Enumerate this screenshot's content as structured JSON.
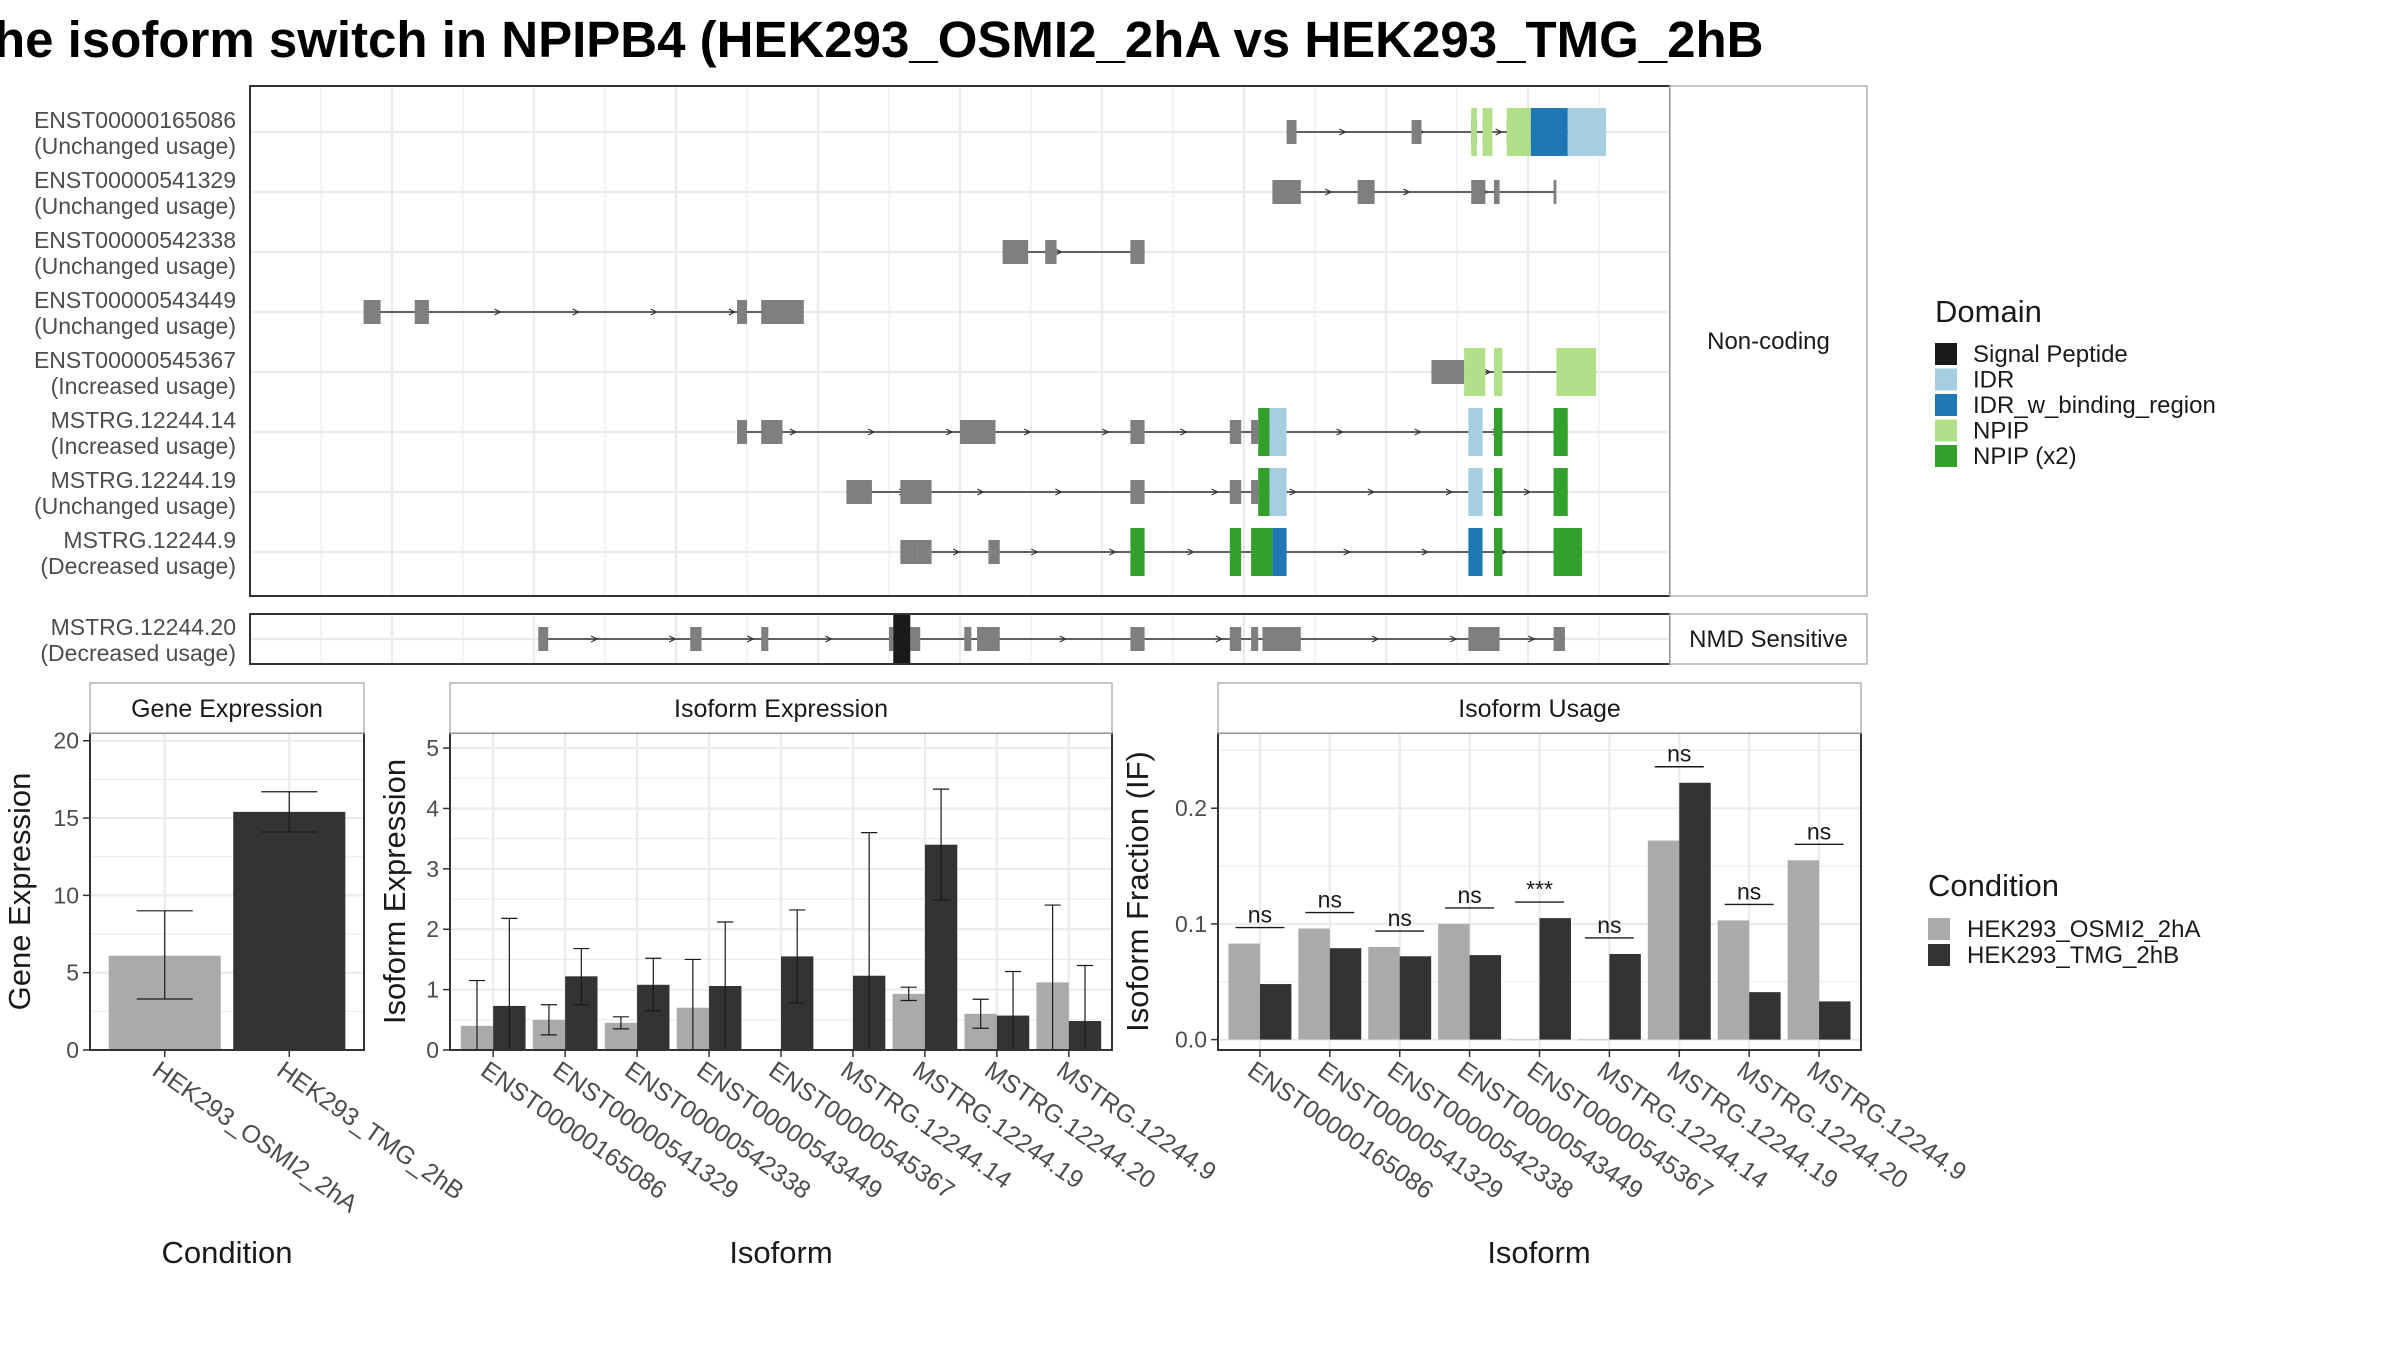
{
  "title": "he isoform switch in NPIPB4 (HEK293_OSMI2_2hA vs HEK293_TMG_2hB",
  "colors": {
    "exon": "#7f7f7f",
    "cond1": "#aaaaaa",
    "cond2": "#333333",
    "grid": "#ebebeb",
    "panel_border": "#333333",
    "strip_border": "#b3b3b3"
  },
  "domain_legend": {
    "title": "Domain",
    "items": [
      {
        "label": "Signal Peptide",
        "color": "#1a1a1a"
      },
      {
        "label": "IDR",
        "color": "#a6cee3"
      },
      {
        "label": "IDR_w_binding_region",
        "color": "#1f78b4"
      },
      {
        "label": "NPIP",
        "color": "#b2df8a"
      },
      {
        "label": "NPIP (x2)",
        "color": "#33a02c"
      }
    ]
  },
  "condition_legend": {
    "title": "Condition",
    "items": [
      {
        "label": "HEK293_OSMI2_2hA",
        "color": "#aaaaaa"
      },
      {
        "label": "HEK293_TMG_2hB",
        "color": "#333333"
      }
    ]
  },
  "chart_data": [
    {
      "type": "isoform_structure",
      "panel": "Non-coding",
      "x_range": [
        0,
        1000
      ],
      "tracks": [
        {
          "name": "ENST00000165086",
          "status": "(Unchanged usage)",
          "exons": [
            [
              730,
              737
            ],
            [
              818,
              825
            ],
            [
              860,
              864
            ],
            [
              868,
              875
            ],
            [
              885,
              890
            ],
            [
              902,
              915
            ]
          ],
          "domains": [
            {
              "start": 860,
              "end": 864,
              "domain": "NPIP"
            },
            {
              "start": 868,
              "end": 875,
              "domain": "NPIP"
            },
            {
              "start": 885,
              "end": 902,
              "domain": "NPIP"
            },
            {
              "start": 902,
              "end": 928,
              "domain": "IDR_w_binding_region"
            },
            {
              "start": 928,
              "end": 955,
              "domain": "IDR"
            }
          ]
        },
        {
          "name": "ENST00000541329",
          "status": "(Unchanged usage)",
          "exons": [
            [
              720,
              740
            ],
            [
              780,
              792
            ],
            [
              860,
              870
            ],
            [
              876,
              880
            ],
            [
              918,
              920
            ]
          ],
          "domains": []
        },
        {
          "name": "ENST00000542338",
          "status": "(Unchanged usage)",
          "exons": [
            [
              530,
              548
            ],
            [
              560,
              568
            ],
            [
              620,
              630
            ]
          ],
          "domains": []
        },
        {
          "name": "ENST00000543449",
          "status": "(Unchanged usage)",
          "exons": [
            [
              80,
              92
            ],
            [
              116,
              126
            ],
            [
              343,
              350
            ],
            [
              360,
              390
            ]
          ],
          "domains": []
        },
        {
          "name": "ENST00000545367",
          "status": "(Increased usage)",
          "exons": [
            [
              832,
              855
            ]
          ],
          "domains": [
            {
              "start": 855,
              "end": 870,
              "domain": "NPIP"
            },
            {
              "start": 876,
              "end": 882,
              "domain": "NPIP"
            },
            {
              "start": 920,
              "end": 948,
              "domain": "NPIP"
            }
          ]
        },
        {
          "name": "MSTRG.12244.14",
          "status": "(Increased usage)",
          "exons": [
            [
              343,
              350
            ],
            [
              360,
              375
            ],
            [
              500,
              525
            ],
            [
              620,
              630
            ],
            [
              690,
              698
            ],
            [
              705,
              710
            ]
          ],
          "domains": [
            {
              "start": 710,
              "end": 718,
              "domain": "NPIP (x2)"
            },
            {
              "start": 718,
              "end": 730,
              "domain": "IDR"
            },
            {
              "start": 858,
              "end": 868,
              "domain": "IDR"
            },
            {
              "start": 876,
              "end": 882,
              "domain": "NPIP (x2)"
            },
            {
              "start": 918,
              "end": 928,
              "domain": "NPIP (x2)"
            }
          ]
        },
        {
          "name": "MSTRG.12244.19",
          "status": "(Unchanged usage)",
          "exons": [
            [
              420,
              438
            ],
            [
              458,
              480
            ],
            [
              620,
              630
            ],
            [
              690,
              698
            ],
            [
              705,
              710
            ]
          ],
          "domains": [
            {
              "start": 710,
              "end": 718,
              "domain": "NPIP (x2)"
            },
            {
              "start": 718,
              "end": 730,
              "domain": "IDR"
            },
            {
              "start": 858,
              "end": 868,
              "domain": "IDR"
            },
            {
              "start": 876,
              "end": 882,
              "domain": "NPIP (x2)"
            },
            {
              "start": 918,
              "end": 928,
              "domain": "NPIP (x2)"
            }
          ]
        },
        {
          "name": "MSTRG.12244.9",
          "status": "(Decreased usage)",
          "exons": [
            [
              458,
              470
            ],
            [
              470,
              480
            ],
            [
              520,
              528
            ]
          ],
          "domains": [
            {
              "start": 620,
              "end": 630,
              "domain": "NPIP (x2)"
            },
            {
              "start": 690,
              "end": 698,
              "domain": "NPIP (x2)"
            },
            {
              "start": 705,
              "end": 720,
              "domain": "NPIP (x2)"
            },
            {
              "start": 720,
              "end": 730,
              "domain": "IDR_w_binding_region"
            },
            {
              "start": 858,
              "end": 868,
              "domain": "IDR_w_binding_region"
            },
            {
              "start": 876,
              "end": 882,
              "domain": "NPIP (x2)"
            },
            {
              "start": 918,
              "end": 938,
              "domain": "NPIP (x2)"
            }
          ]
        }
      ]
    },
    {
      "type": "isoform_structure",
      "panel": "NMD Sensitive",
      "x_range": [
        0,
        1000
      ],
      "tracks": [
        {
          "name": "MSTRG.12244.20",
          "status": "(Decreased usage)",
          "exons": [
            [
              203,
              210
            ],
            [
              310,
              318
            ],
            [
              360,
              365
            ],
            [
              450,
              453
            ],
            [
              465,
              472
            ],
            [
              503,
              508
            ],
            [
              512,
              528
            ],
            [
              620,
              630
            ],
            [
              690,
              698
            ],
            [
              705,
              710
            ],
            [
              713,
              740
            ],
            [
              858,
              880
            ],
            [
              918,
              926
            ]
          ],
          "domains": [
            {
              "start": 453,
              "end": 465,
              "domain": "Signal Peptide"
            }
          ]
        }
      ]
    },
    {
      "type": "bar",
      "title": "Gene Expression",
      "xlabel": "Condition",
      "ylabel": "Gene Expression",
      "ylim": [
        0,
        20.5
      ],
      "yticks": [
        0,
        5,
        10,
        15,
        20
      ],
      "categories": [
        "HEK293_OSMI2_2hA",
        "HEK293_TMG_2hB"
      ],
      "values": [
        6.1,
        15.4
      ],
      "errors": [
        [
          3.3,
          9.0
        ],
        [
          14.1,
          16.7
        ]
      ]
    },
    {
      "type": "bar",
      "title": "Isoform Expression",
      "xlabel": "Isoform",
      "ylabel": "Isoform Expression",
      "ylim": [
        0,
        5.25
      ],
      "yticks": [
        0,
        1,
        2,
        3,
        4,
        5
      ],
      "categories": [
        "ENST00000165086",
        "ENST00000541329",
        "ENST00000542338",
        "ENST00000543449",
        "ENST00000545367",
        "MSTRG.12244.14",
        "MSTRG.12244.19",
        "MSTRG.12244.20",
        "MSTRG.12244.9"
      ],
      "series": [
        {
          "name": "HEK293_OSMI2_2hA",
          "values": [
            0.4,
            0.5,
            0.45,
            0.7,
            0.0,
            0.0,
            0.93,
            0.6,
            1.12
          ],
          "errors": [
            [
              0.0,
              1.15
            ],
            [
              0.25,
              0.75
            ],
            [
              0.35,
              0.55
            ],
            [
              0.0,
              1.5
            ],
            [
              0.0,
              0.0
            ],
            [
              0.0,
              0.0
            ],
            [
              0.82,
              1.04
            ],
            [
              0.36,
              0.84
            ],
            [
              0.0,
              2.4
            ]
          ]
        },
        {
          "name": "HEK293_TMG_2hB",
          "values": [
            0.73,
            1.22,
            1.08,
            1.06,
            1.55,
            1.23,
            3.4,
            0.57,
            0.48
          ],
          "errors": [
            [
              0.0,
              2.18
            ],
            [
              0.75,
              1.68
            ],
            [
              0.65,
              1.52
            ],
            [
              0.0,
              2.12
            ],
            [
              0.78,
              2.32
            ],
            [
              0.0,
              3.6
            ],
            [
              2.48,
              4.32
            ],
            [
              0.0,
              1.3
            ],
            [
              0.0,
              1.4
            ]
          ]
        }
      ]
    },
    {
      "type": "bar",
      "title": "Isoform Usage",
      "xlabel": "Isoform",
      "ylabel": "Isoform Fraction (IF)",
      "ylim": [
        -0.009,
        0.265
      ],
      "yticks": [
        0.0,
        0.1,
        0.2
      ],
      "ytick_labels": [
        "0.0",
        "0.1",
        "0.2"
      ],
      "categories": [
        "ENST00000165086",
        "ENST00000541329",
        "ENST00000542338",
        "ENST00000543449",
        "ENST00000545367",
        "MSTRG.12244.14",
        "MSTRG.12244.19",
        "MSTRG.12244.20",
        "MSTRG.12244.9"
      ],
      "series": [
        {
          "name": "HEK293_OSMI2_2hA",
          "values": [
            0.083,
            0.096,
            0.08,
            0.1,
            0.0,
            0.0,
            0.172,
            0.103,
            0.155
          ]
        },
        {
          "name": "HEK293_TMG_2hB",
          "values": [
            0.048,
            0.079,
            0.072,
            0.073,
            0.105,
            0.074,
            0.222,
            0.041,
            0.033
          ]
        }
      ],
      "significance": [
        "ns",
        "ns",
        "ns",
        "ns",
        "***",
        "ns",
        "ns",
        "ns",
        "ns"
      ]
    }
  ]
}
